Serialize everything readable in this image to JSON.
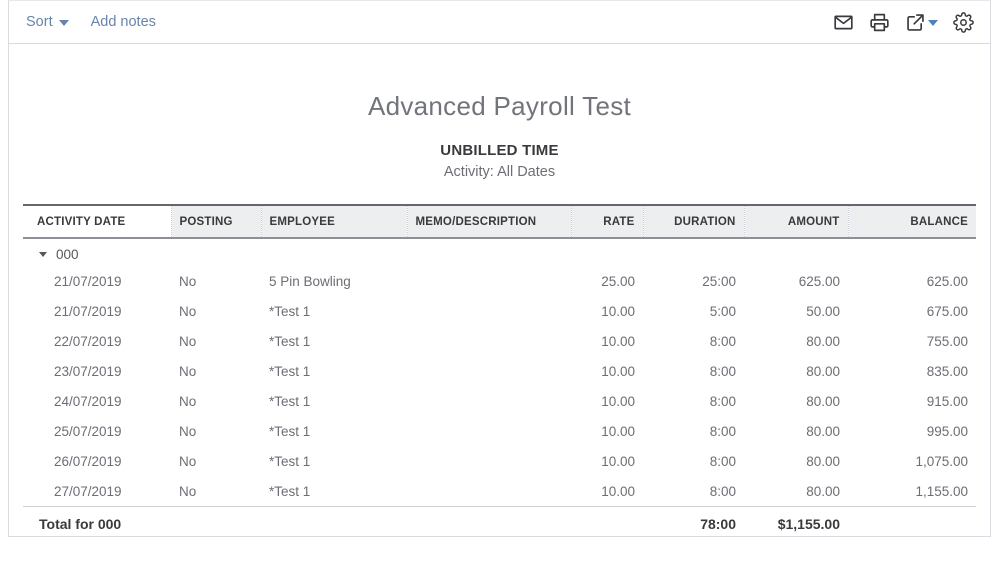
{
  "toolbar": {
    "sort_label": "Sort",
    "add_notes_label": "Add notes",
    "icons": [
      {
        "name": "email-icon"
      },
      {
        "name": "print-icon"
      },
      {
        "name": "export-icon"
      },
      {
        "name": "settings-gear-icon"
      }
    ]
  },
  "report": {
    "title": "Advanced Payroll Test",
    "subtitle": "UNBILLED TIME",
    "period": "Activity: All Dates"
  },
  "table": {
    "columns": [
      {
        "label": "ACTIVITY DATE",
        "align": "left"
      },
      {
        "label": "POSTING",
        "align": "left"
      },
      {
        "label": "EMPLOYEE",
        "align": "left"
      },
      {
        "label": "MEMO/DESCRIPTION",
        "align": "left"
      },
      {
        "label": "RATE",
        "align": "right"
      },
      {
        "label": "DURATION",
        "align": "right"
      },
      {
        "label": "AMOUNT",
        "align": "right"
      },
      {
        "label": "BALANCE",
        "align": "right"
      }
    ],
    "group_label": "000",
    "rows": [
      [
        "21/07/2019",
        "No",
        "5 Pin Bowling",
        "",
        "25.00",
        "25:00",
        "625.00",
        "625.00"
      ],
      [
        "21/07/2019",
        "No",
        "*Test 1",
        "",
        "10.00",
        "5:00",
        "50.00",
        "675.00"
      ],
      [
        "22/07/2019",
        "No",
        "*Test 1",
        "",
        "10.00",
        "8:00",
        "80.00",
        "755.00"
      ],
      [
        "23/07/2019",
        "No",
        "*Test 1",
        "",
        "10.00",
        "8:00",
        "80.00",
        "835.00"
      ],
      [
        "24/07/2019",
        "No",
        "*Test 1",
        "",
        "10.00",
        "8:00",
        "80.00",
        "915.00"
      ],
      [
        "25/07/2019",
        "No",
        "*Test 1",
        "",
        "10.00",
        "8:00",
        "80.00",
        "995.00"
      ],
      [
        "26/07/2019",
        "No",
        "*Test 1",
        "",
        "10.00",
        "8:00",
        "80.00",
        "1,075.00"
      ],
      [
        "27/07/2019",
        "No",
        "*Test 1",
        "",
        "10.00",
        "8:00",
        "80.00",
        "1,155.00"
      ]
    ],
    "total": {
      "label": "Total for 000",
      "duration": "78:00",
      "amount": "$1,155.00"
    }
  },
  "colors": {
    "accent": "#6785ab",
    "icon": "#393a3d",
    "caret-blue": "#4d82b8",
    "header-bg": "#edeef0"
  }
}
